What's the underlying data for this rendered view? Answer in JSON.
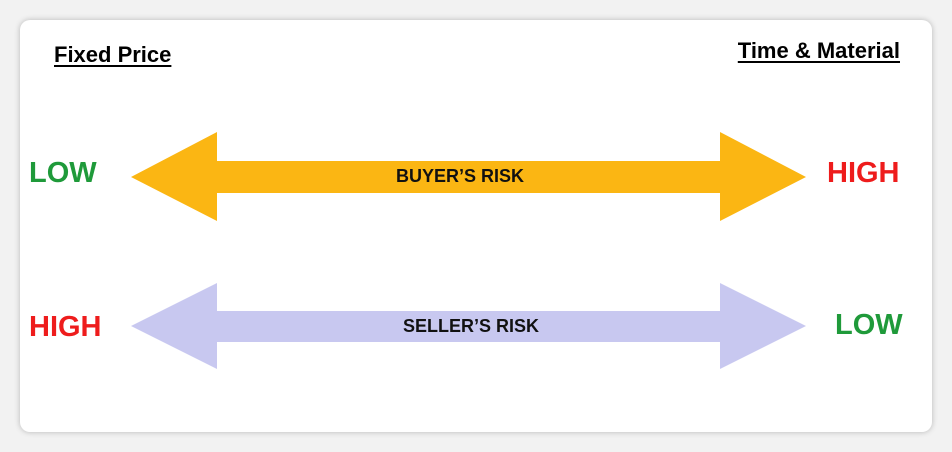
{
  "headings": {
    "left": "Fixed Price",
    "right": "Time & Material"
  },
  "buyer": {
    "label": "BUYER’S RISK",
    "left_level": "LOW",
    "right_level": "HIGH",
    "arrow_color": "#fbb613"
  },
  "seller": {
    "label": "SELLER’S RISK",
    "left_level": "HIGH",
    "right_level": "LOW",
    "arrow_color": "#c8c8f0"
  },
  "colors": {
    "low": "#1f9a3a",
    "high": "#ee1c1c"
  }
}
